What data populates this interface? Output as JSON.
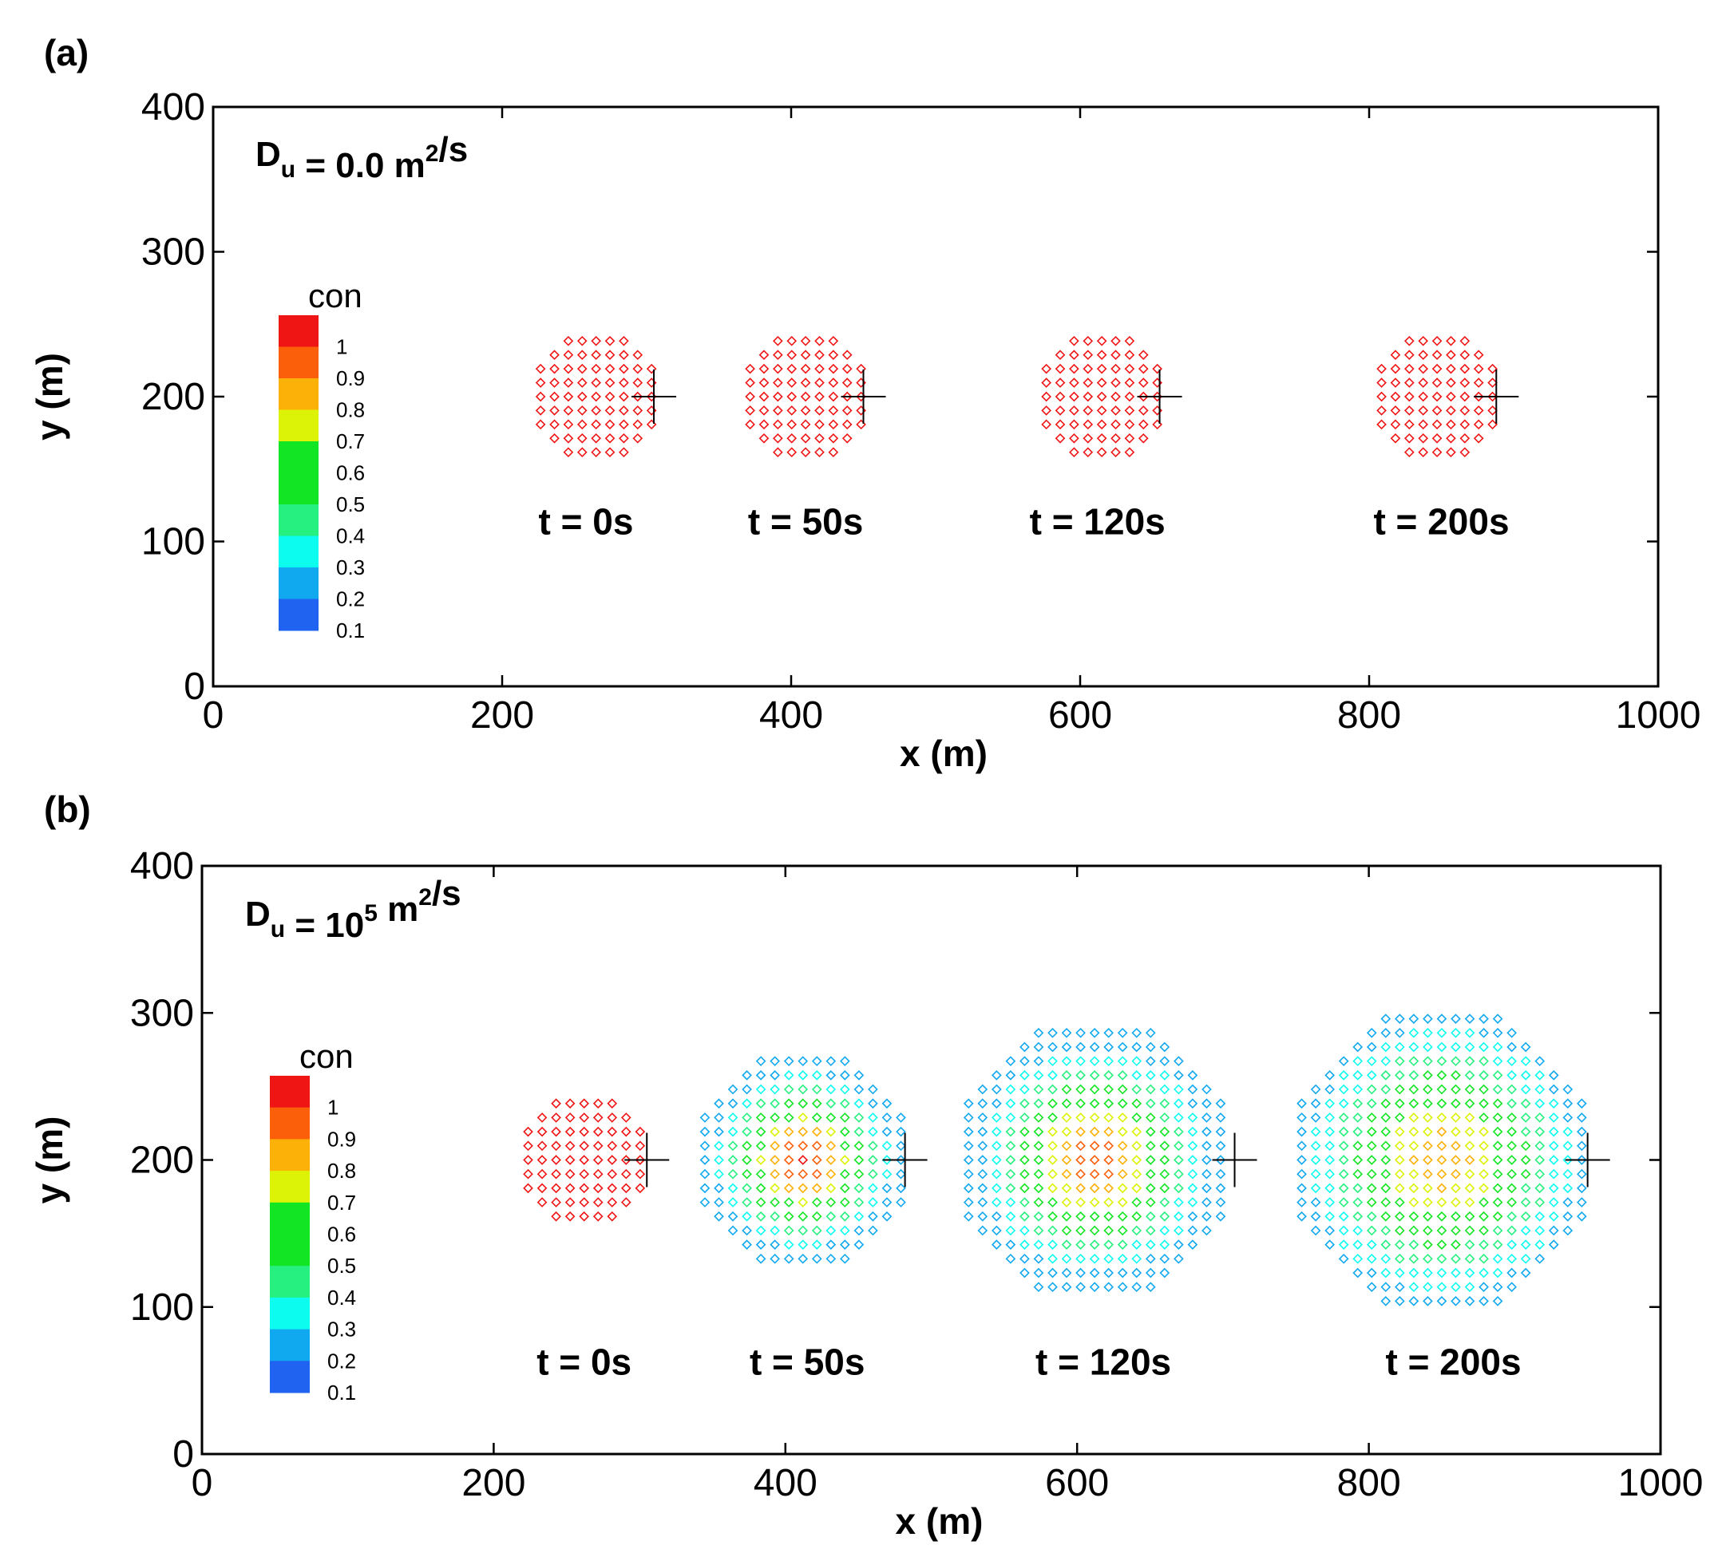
{
  "chart_data": [
    {
      "type": "scatter",
      "panel_label": "(a)",
      "annotation": {
        "base": "D",
        "sub": "u",
        "eq": " = 0.0 m",
        "sup": "2",
        "tail": "/s"
      },
      "xlabel": "x (m)",
      "ylabel": "y (m)",
      "xlim": [
        0,
        1000
      ],
      "ylim": [
        0,
        400
      ],
      "xticks": [
        "0",
        "200",
        "400",
        "600",
        "800",
        "1000"
      ],
      "yticks": [
        "0",
        "100",
        "200",
        "300",
        "400"
      ],
      "colorbar": {
        "title": "con",
        "levels": [
          "1",
          "0.9",
          "0.8",
          "0.7",
          "0.6",
          "0.5",
          "0.4",
          "0.3",
          "0.2",
          "0.1"
        ]
      },
      "snapshots": [
        {
          "label": "t = 0s",
          "center": [
            265,
            200
          ],
          "radius": 45,
          "peak": 0.9,
          "diffusion_width": 0,
          "marker": [
            305,
            200
          ],
          "label_pos": [
            258,
            105
          ]
        },
        {
          "label": "t = 50s",
          "center": [
            410,
            200
          ],
          "radius": 45,
          "peak": 0.9,
          "diffusion_width": 0,
          "marker": [
            450,
            200
          ],
          "label_pos": [
            410,
            105
          ]
        },
        {
          "label": "t = 120s",
          "center": [
            615,
            200
          ],
          "radius": 45,
          "peak": 0.9,
          "diffusion_width": 0,
          "marker": [
            655,
            200
          ],
          "label_pos": [
            612,
            105
          ]
        },
        {
          "label": "t = 200s",
          "center": [
            847,
            200
          ],
          "radius": 45,
          "peak": 0.9,
          "diffusion_width": 0,
          "marker": [
            888,
            200
          ],
          "label_pos": [
            850,
            105
          ]
        }
      ]
    },
    {
      "type": "scatter",
      "panel_label": "(b)",
      "annotation": {
        "base": "D",
        "sub": "u",
        "eq": " = 10",
        "sup": "5",
        "tail": " m",
        "sup2": "2",
        "tail2": "/s"
      },
      "xlabel": "x (m)",
      "ylabel": "y (m)",
      "xlim": [
        0,
        1000
      ],
      "ylim": [
        0,
        400
      ],
      "xticks": [
        "0",
        "200",
        "400",
        "600",
        "800",
        "1000"
      ],
      "yticks": [
        "0",
        "100",
        "200",
        "300",
        "400"
      ],
      "colorbar": {
        "title": "con",
        "levels": [
          "1",
          "0.9",
          "0.8",
          "0.7",
          "0.6",
          "0.5",
          "0.4",
          "0.3",
          "0.2",
          "0.1"
        ]
      },
      "snapshots": [
        {
          "label": "t = 0s",
          "center": [
            262,
            200
          ],
          "radius": 45,
          "peak": 0.9,
          "diffusion_width": 0,
          "marker": [
            305,
            200
          ],
          "label_pos": [
            262,
            54
          ]
        },
        {
          "label": "t = 50s",
          "center": [
            412,
            200
          ],
          "radius": 75,
          "peak": 0.9,
          "diffusion_width": 40,
          "marker": [
            482,
            200
          ],
          "label_pos": [
            415,
            54
          ]
        },
        {
          "label": "t = 120s",
          "center": [
            612,
            200
          ],
          "radius": 95,
          "peak": 0.85,
          "diffusion_width": 52,
          "marker": [
            708,
            200
          ],
          "label_pos": [
            618,
            54
          ]
        },
        {
          "label": "t = 200s",
          "center": [
            850,
            200
          ],
          "radius": 105,
          "peak": 0.75,
          "diffusion_width": 65,
          "marker": [
            950,
            200
          ],
          "label_pos": [
            858,
            54
          ]
        }
      ]
    }
  ],
  "colormap": [
    "#1f63f0",
    "#10a8ef",
    "#0dfcf0",
    "#26f07f",
    "#12e523",
    "#12e523",
    "#dcf207",
    "#fcb108",
    "#fc5f0a",
    "#f01515"
  ]
}
